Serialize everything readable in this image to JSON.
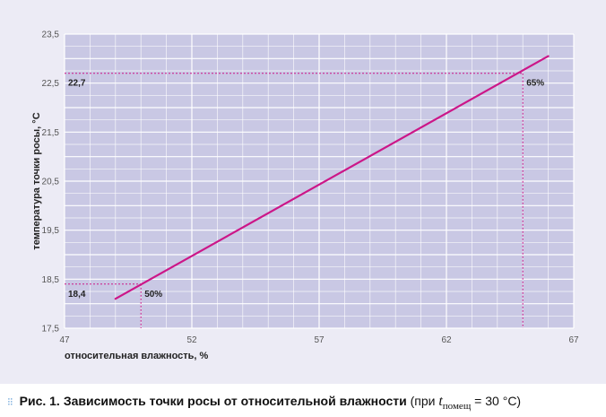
{
  "chart_data": {
    "type": "line",
    "xlabel": "относительная влажность, %",
    "ylabel": "температура точки росы, °С",
    "xlim": [
      47,
      67
    ],
    "ylim": [
      17.5,
      23.5
    ],
    "x_ticks": [
      "47",
      "52",
      "57",
      "62",
      "67"
    ],
    "y_ticks": [
      "17,5",
      "18,5",
      "19,5",
      "20,5",
      "21,5",
      "22,5",
      "23,5"
    ],
    "grid": true,
    "series": [
      {
        "x": [
          49,
          66
        ],
        "y": [
          18.1,
          23.05
        ]
      }
    ],
    "annotations": [
      {
        "x": 50,
        "y": 18.4,
        "x_text": "50%",
        "y_text": "18,4"
      },
      {
        "x": 65,
        "y": 22.7,
        "x_text": "65%",
        "y_text": "22,7"
      }
    ],
    "colors": {
      "line": "#cc1688",
      "plot_bg": "#c9c8e4",
      "grid": "#ffffff",
      "guide": "#cc1688"
    }
  },
  "caption": {
    "label": "Рис. 1.",
    "title": "Зависимость точки росы от относительной влажности",
    "cond_open": "(при ",
    "var": "t",
    "sub": "помещ",
    "cond_close": " = 30 °С)"
  }
}
